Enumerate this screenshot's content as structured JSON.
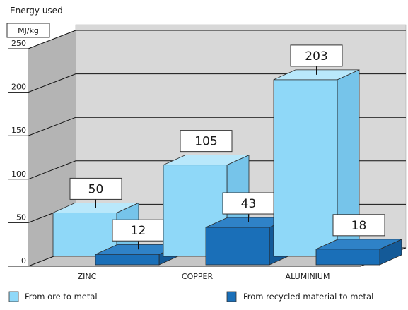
{
  "chart_data": {
    "type": "bar",
    "ylabel": "Energy used",
    "unit": "MJ/kg",
    "ylim": [
      0,
      250
    ],
    "yticks": [
      0,
      50,
      100,
      150,
      200,
      250
    ],
    "categories": [
      "ZINC",
      "COPPER",
      "ALUMINIUM"
    ],
    "series": [
      {
        "name": "From ore to metal",
        "values": [
          50,
          105,
          203
        ]
      },
      {
        "name": "From recycled material to metal",
        "values": [
          12,
          43,
          18
        ]
      }
    ],
    "grid": true,
    "legend": "bottom",
    "colors": {
      "series1_front": "#8fd8f8",
      "series1_side": "#76c4ea",
      "series1_top": "#b9e8fb",
      "series2_front": "#1a6fb8",
      "series2_side": "#145a98",
      "series2_top": "#2f82c7",
      "back_wall": "#d8d8d8",
      "side_wall": "#b4b4b4",
      "floor": "#c6c6c6",
      "edge": "#2a2a2a"
    }
  }
}
